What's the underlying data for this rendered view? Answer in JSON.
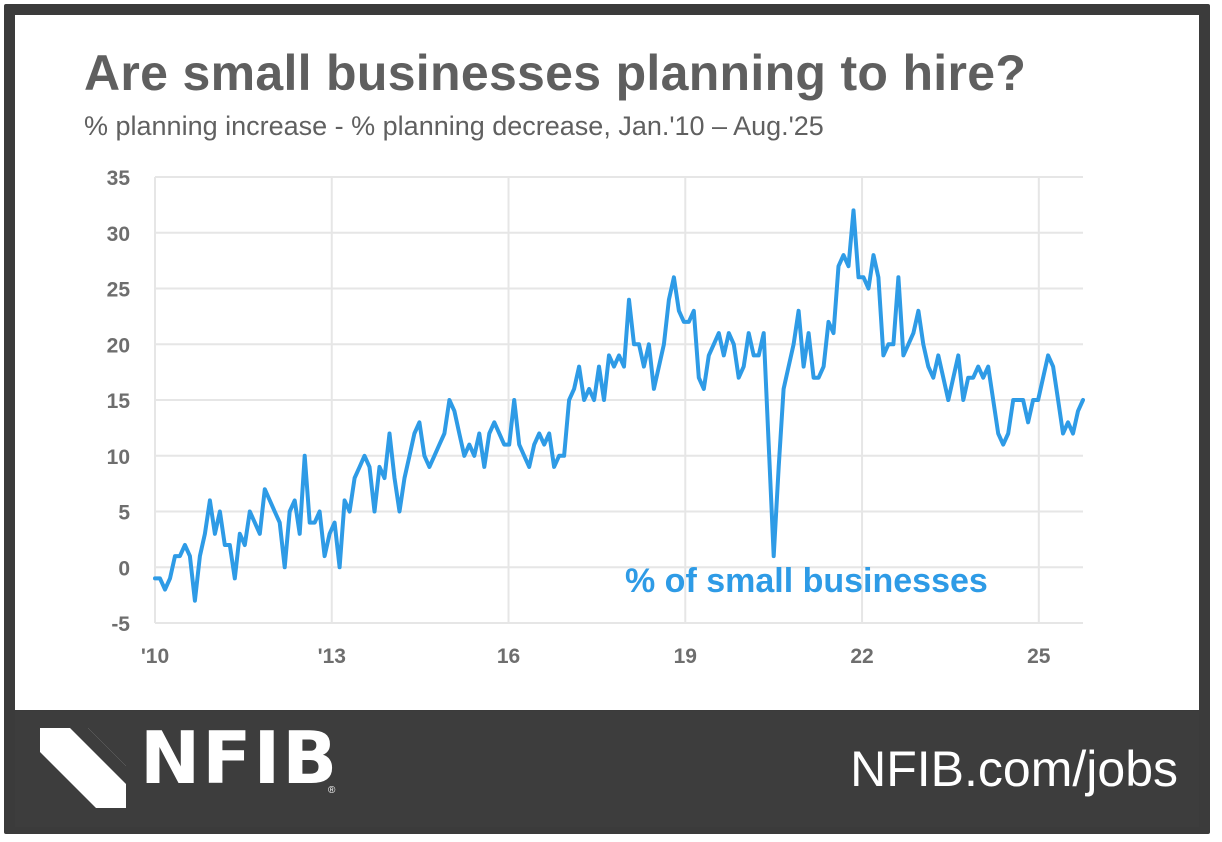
{
  "header": {
    "title": "Are small businesses planning to hire?",
    "subtitle": "% planning increase - % planning decrease,  Jan.'10 – Aug.'25"
  },
  "footer": {
    "logo_text": "NFIB",
    "logo_mark_icon": "nfib-chevron-logo-icon",
    "url": "NFIB.com/jobs",
    "background": "#3d3d3d"
  },
  "chart_data": {
    "type": "line",
    "title": "Are small businesses planning to hire?",
    "subtitle": "% planning increase - % planning decrease,  Jan.'10 – Aug.'25",
    "xlabel": "",
    "ylabel": "",
    "x_start": "2010-01",
    "x_end": "2025-08",
    "frequency": "monthly",
    "x_range": [
      2010.0,
      2025.75
    ],
    "ylim": [
      -5,
      35
    ],
    "y_ticks": [
      -5,
      0,
      5,
      10,
      15,
      20,
      25,
      30,
      35
    ],
    "x_tick_labels": [
      {
        "x": 2010,
        "label": "'10"
      },
      {
        "x": 2013,
        "label": "'13"
      },
      {
        "x": 2016,
        "label": "16"
      },
      {
        "x": 2019,
        "label": "19"
      },
      {
        "x": 2022,
        "label": "22"
      },
      {
        "x": 2025,
        "label": "25"
      }
    ],
    "grid": true,
    "annotation": "% of small businesses",
    "series": [
      {
        "name": "",
        "color": "#2e9be6",
        "values": [
          -1,
          -1,
          -2,
          -1,
          1,
          1,
          2,
          1,
          -3,
          1,
          3,
          6,
          3,
          5,
          2,
          2,
          -1,
          3,
          2,
          5,
          4,
          3,
          7,
          6,
          5,
          4,
          0,
          5,
          6,
          3,
          10,
          4,
          4,
          5,
          1,
          3,
          4,
          0,
          6,
          5,
          8,
          9,
          10,
          9,
          5,
          9,
          8,
          12,
          8,
          5,
          8,
          10,
          12,
          13,
          10,
          9,
          10,
          11,
          12,
          15,
          14,
          12,
          10,
          11,
          10,
          12,
          9,
          12,
          13,
          12,
          11,
          11,
          15,
          11,
          10,
          9,
          11,
          12,
          11,
          12,
          9,
          10,
          10,
          15,
          16,
          18,
          15,
          16,
          15,
          18,
          15,
          19,
          18,
          19,
          18,
          24,
          20,
          20,
          18,
          20,
          16,
          18,
          20,
          24,
          26,
          23,
          22,
          22,
          23,
          17,
          16,
          19,
          20,
          21,
          19,
          21,
          20,
          17,
          18,
          21,
          19,
          19,
          21,
          11,
          1,
          9,
          16,
          18,
          20,
          23,
          18,
          21,
          17,
          17,
          18,
          22,
          21,
          27,
          28,
          27,
          32,
          26,
          26,
          25,
          28,
          26,
          19,
          20,
          20,
          26,
          19,
          20,
          21,
          23,
          20,
          18,
          17,
          19,
          17,
          15,
          17,
          19,
          15,
          17,
          17,
          18,
          17,
          18,
          15,
          12,
          11,
          12,
          15,
          15,
          15,
          13,
          15,
          15,
          17,
          19,
          18,
          15,
          12,
          13,
          12,
          14,
          15
        ]
      }
    ]
  }
}
